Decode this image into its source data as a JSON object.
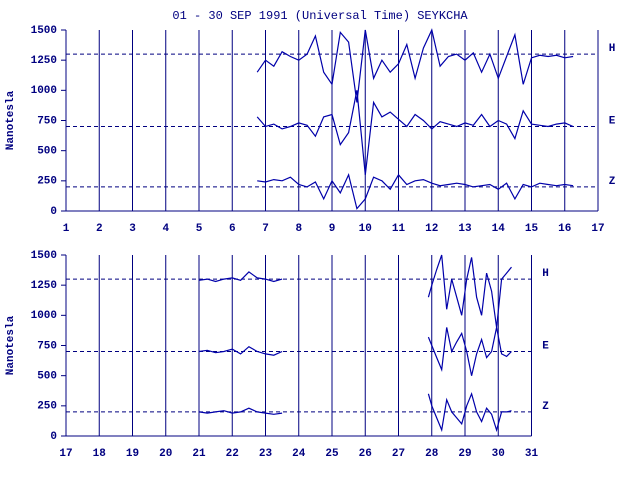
{
  "chart_data": [
    {
      "type": "line",
      "title": "01 - 30 SEP 1991 (Universal Time) SEYKCHA",
      "ylabel": "Nanotesla",
      "xlim": [
        1,
        17
      ],
      "xticks": [
        1,
        2,
        3,
        4,
        5,
        6,
        7,
        8,
        9,
        10,
        11,
        12,
        13,
        14,
        15,
        16,
        17
      ],
      "ylim": [
        0,
        1500
      ],
      "yticks": [
        0,
        250,
        500,
        750,
        1000,
        1250,
        1500
      ],
      "grid": true,
      "x": [
        6.75,
        7,
        7.25,
        7.5,
        7.75,
        8,
        8.25,
        8.5,
        8.75,
        9,
        9.25,
        9.5,
        9.75,
        10,
        10.25,
        10.5,
        10.75,
        11,
        11.25,
        11.5,
        11.75,
        12,
        12.25,
        12.5,
        12.75,
        13,
        13.25,
        13.5,
        13.75,
        14,
        14.25,
        14.5,
        14.75,
        15,
        15.25,
        15.5,
        15.75,
        16,
        16.25
      ],
      "series": [
        {
          "name": "H",
          "color": "#0000aa",
          "baseline": 1300,
          "values": [
            1150,
            1250,
            1200,
            1320,
            1280,
            1250,
            1300,
            1450,
            1150,
            1050,
            1480,
            1400,
            900,
            1500,
            1100,
            1250,
            1150,
            1220,
            1380,
            1100,
            1350,
            1500,
            1200,
            1280,
            1300,
            1250,
            1310,
            1150,
            1300,
            1100,
            1280,
            1460,
            1050,
            1270,
            1290,
            1280,
            1290,
            1270,
            1280
          ]
        },
        {
          "name": "E",
          "color": "#0000aa",
          "baseline": 700,
          "values": [
            780,
            700,
            720,
            680,
            700,
            730,
            710,
            620,
            780,
            800,
            550,
            650,
            1000,
            300,
            900,
            780,
            820,
            760,
            700,
            800,
            750,
            680,
            740,
            720,
            700,
            730,
            710,
            800,
            700,
            750,
            720,
            600,
            830,
            720,
            710,
            700,
            720,
            730,
            700
          ]
        },
        {
          "name": "Z",
          "color": "#0000aa",
          "baseline": 200,
          "values": [
            250,
            240,
            260,
            250,
            280,
            220,
            200,
            240,
            100,
            250,
            150,
            300,
            20,
            100,
            280,
            250,
            180,
            300,
            220,
            250,
            260,
            230,
            210,
            220,
            230,
            220,
            200,
            210,
            220,
            180,
            230,
            100,
            220,
            200,
            230,
            220,
            210,
            220,
            210
          ]
        }
      ]
    },
    {
      "type": "line",
      "ylabel": "Nanotesla",
      "xlim": [
        17,
        31
      ],
      "xticks": [
        17,
        18,
        19,
        20,
        21,
        22,
        23,
        24,
        25,
        26,
        27,
        28,
        29,
        30,
        31
      ],
      "ylim": [
        0,
        1500
      ],
      "yticks": [
        0,
        250,
        500,
        750,
        1000,
        1250,
        1500
      ],
      "grid": true,
      "x": [
        21,
        21.25,
        21.5,
        21.75,
        22,
        22.25,
        22.5,
        22.75,
        23,
        23.25,
        23.5,
        25.5,
        27.9,
        28,
        28.15,
        28.3,
        28.45,
        28.6,
        28.75,
        28.9,
        29.05,
        29.2,
        29.35,
        29.5,
        29.65,
        29.8,
        29.95,
        30.1,
        30.25,
        30.4
      ],
      "series": [
        {
          "name": "H",
          "color": "#0000aa",
          "baseline": 1300,
          "values": [
            1290,
            1300,
            1280,
            1300,
            1310,
            1290,
            1360,
            1310,
            1300,
            1280,
            1300,
            null,
            1150,
            1250,
            1380,
            1500,
            1050,
            1300,
            1150,
            1000,
            1300,
            1480,
            1150,
            1000,
            1350,
            1200,
            900,
            1300,
            1350,
            1400
          ]
        },
        {
          "name": "E",
          "color": "#0000aa",
          "baseline": 700,
          "values": [
            700,
            710,
            690,
            700,
            720,
            680,
            740,
            700,
            680,
            670,
            700,
            null,
            820,
            750,
            650,
            550,
            900,
            700,
            780,
            850,
            700,
            500,
            680,
            800,
            650,
            700,
            900,
            680,
            660,
            700
          ]
        },
        {
          "name": "Z",
          "color": "#0000aa",
          "baseline": 200,
          "values": [
            200,
            190,
            200,
            210,
            190,
            200,
            230,
            200,
            190,
            180,
            190,
            null,
            350,
            250,
            150,
            50,
            300,
            200,
            150,
            100,
            250,
            350,
            200,
            120,
            230,
            180,
            50,
            200,
            200,
            210
          ]
        }
      ]
    }
  ]
}
